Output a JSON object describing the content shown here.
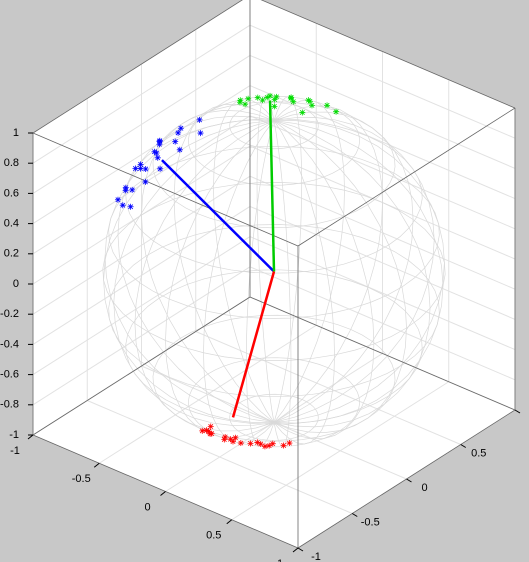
{
  "chart_data": {
    "type": "scatter3d",
    "xlim": [
      -1,
      1
    ],
    "ylim": [
      -1,
      1
    ],
    "zlim": [
      -1,
      1
    ],
    "xticks": [
      -1,
      -0.5,
      0,
      0.5,
      1
    ],
    "yticks": [
      -1,
      -0.5,
      0,
      0.5,
      1
    ],
    "zticks": [
      -1,
      -0.8,
      -0.6,
      -0.4,
      -0.2,
      0,
      0.2,
      0.4,
      0.6,
      0.8,
      1
    ],
    "grid": true,
    "series": [
      {
        "color": "#0000ff",
        "x": [
          -0.64,
          -0.55,
          -0.7,
          -0.6,
          -0.5,
          -0.72,
          -0.45,
          -0.66,
          -0.58,
          -0.75,
          -0.52,
          -0.68,
          -0.4,
          -0.62,
          -0.8,
          -0.56,
          -0.48,
          -0.71,
          -0.35,
          -0.6,
          -0.78,
          -0.65,
          -0.55,
          -0.85
        ],
        "y": [
          -0.32,
          -0.4,
          -0.2,
          -0.45,
          -0.3,
          -0.35,
          -0.5,
          -0.25,
          -0.15,
          -0.45,
          -0.55,
          -0.4,
          -0.38,
          -0.55,
          -0.3,
          -0.2,
          -0.1,
          -0.5,
          -0.25,
          -0.35,
          -0.1,
          -0.6,
          -0.65,
          -0.4
        ],
        "z": [
          0.7,
          0.73,
          0.69,
          0.66,
          0.81,
          0.6,
          0.74,
          0.71,
          0.8,
          0.48,
          0.65,
          0.61,
          0.83,
          0.56,
          0.52,
          0.8,
          0.87,
          0.5,
          0.9,
          0.72,
          0.62,
          0.47,
          0.52,
          0.34
        ]
      },
      {
        "color": "#00dd00",
        "x": [
          -0.3,
          -0.2,
          -0.4,
          -0.1,
          -0.35,
          -0.25,
          0.0,
          -0.45,
          -0.15,
          -0.3,
          0.1,
          -0.5,
          -0.2,
          -0.05,
          -0.38,
          -0.28,
          0.05,
          -0.12,
          -0.42,
          -0.22
        ],
        "y": [
          0.33,
          0.4,
          0.25,
          0.3,
          0.45,
          0.2,
          0.35,
          0.4,
          0.5,
          0.1,
          0.45,
          0.3,
          0.25,
          0.55,
          0.15,
          0.5,
          0.2,
          0.15,
          0.45,
          0.6
        ],
        "z": [
          0.9,
          0.89,
          0.88,
          0.95,
          0.82,
          0.95,
          0.94,
          0.8,
          0.85,
          0.95,
          0.89,
          0.81,
          0.95,
          0.83,
          0.91,
          0.82,
          0.98,
          0.98,
          0.79,
          0.77
        ]
      },
      {
        "color": "#ff0000",
        "x": [
          0.1,
          0.0,
          0.2,
          0.15,
          -0.05,
          0.25,
          0.05,
          0.3,
          -0.1,
          0.12,
          0.35,
          0.02,
          0.18,
          -0.15,
          0.08,
          0.22,
          0.4,
          -0.02,
          0.28,
          0.1
        ],
        "y": [
          -0.5,
          -0.45,
          -0.55,
          -0.4,
          -0.6,
          -0.35,
          -0.65,
          -0.45,
          -0.5,
          -0.3,
          -0.55,
          -0.38,
          -0.62,
          -0.4,
          -0.7,
          -0.28,
          -0.4,
          -0.55,
          -0.2,
          -0.58
        ],
        "z": [
          -0.86,
          -0.89,
          -0.81,
          -0.9,
          -0.8,
          -0.9,
          -0.76,
          -0.84,
          -0.86,
          -0.95,
          -0.76,
          -0.92,
          -0.76,
          -0.9,
          -0.71,
          -0.93,
          -0.82,
          -0.83,
          -0.94,
          -0.81
        ]
      }
    ],
    "lines": [
      {
        "color": "#0000ff",
        "x": [
          0,
          -0.6
        ],
        "y": [
          0,
          -0.3
        ],
        "z": [
          0,
          0.65
        ]
      },
      {
        "color": "#00cc00",
        "x": [
          0,
          -0.3
        ],
        "y": [
          0,
          0.33
        ],
        "z": [
          0,
          0.87
        ]
      },
      {
        "color": "#ff0000",
        "x": [
          0,
          0.1
        ],
        "y": [
          0,
          -0.5
        ],
        "z": [
          0,
          -0.7
        ]
      }
    ]
  }
}
